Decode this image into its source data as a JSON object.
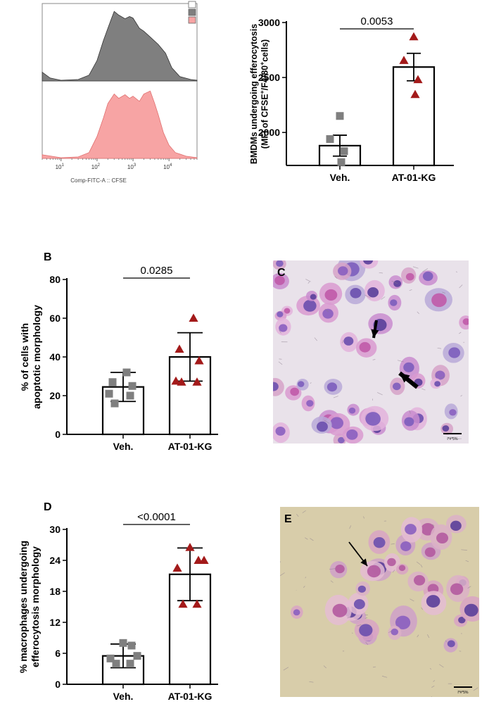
{
  "chart_data": [
    {
      "id": "A-left",
      "type": "area",
      "subtype": "flow-cytometry-histogram-overlay",
      "xlabel": "Comp-FITC-A :: CFSE",
      "x_scale": "log",
      "x_ticks": [
        {
          "base": "10",
          "exp": "1",
          "value": 10
        },
        {
          "base": "10",
          "exp": "2",
          "value": 100
        },
        {
          "base": "10",
          "exp": "3",
          "value": 1000
        },
        {
          "base": "10",
          "exp": "4",
          "value": 10000
        }
      ],
      "xlim": [
        3,
        60000
      ],
      "series": [
        {
          "color": "#7f7f7f",
          "stroke": "#333333",
          "points": [
            [
              3,
              0.12
            ],
            [
              5,
              0.04
            ],
            [
              10,
              0.01
            ],
            [
              30,
              0.02
            ],
            [
              60,
              0.08
            ],
            [
              100,
              0.28
            ],
            [
              150,
              0.55
            ],
            [
              200,
              0.72
            ],
            [
              250,
              0.85
            ],
            [
              300,
              0.95
            ],
            [
              400,
              0.9
            ],
            [
              600,
              0.85
            ],
            [
              800,
              0.88
            ],
            [
              1000,
              0.86
            ],
            [
              1500,
              0.72
            ],
            [
              2000,
              0.68
            ],
            [
              3000,
              0.6
            ],
            [
              5000,
              0.5
            ],
            [
              8000,
              0.38
            ],
            [
              12000,
              0.18
            ],
            [
              20000,
              0.06
            ],
            [
              40000,
              0.02
            ],
            [
              60000,
              0.01
            ]
          ]
        },
        {
          "color": "#f7a4a4",
          "stroke": "#e07070",
          "points": [
            [
              3,
              0.05
            ],
            [
              10,
              0.01
            ],
            [
              30,
              0.02
            ],
            [
              60,
              0.08
            ],
            [
              100,
              0.3
            ],
            [
              150,
              0.55
            ],
            [
              200,
              0.75
            ],
            [
              300,
              0.88
            ],
            [
              400,
              0.82
            ],
            [
              600,
              0.87
            ],
            [
              800,
              0.82
            ],
            [
              1000,
              0.85
            ],
            [
              1500,
              0.78
            ],
            [
              2000,
              0.88
            ],
            [
              3000,
              0.92
            ],
            [
              4000,
              0.75
            ],
            [
              5000,
              0.6
            ],
            [
              7000,
              0.35
            ],
            [
              10000,
              0.18
            ],
            [
              15000,
              0.08
            ],
            [
              30000,
              0.03
            ],
            [
              60000,
              0.01
            ]
          ]
        }
      ],
      "legend_colors": [
        "#ffffff",
        "#7f7f7f",
        "#f7a4a4"
      ]
    },
    {
      "id": "A-right",
      "type": "bar",
      "ylabel_line1": "BMDMs undergoing efferocytosis",
      "ylabel_line2_parts": [
        {
          "t": "(MFI of CFSE",
          "sup": false
        },
        {
          "t": "+",
          "sup": true
        },
        {
          "t": "/F4/80",
          "sup": false
        },
        {
          "t": "+",
          "sup": true
        },
        {
          "t": "cells)",
          "sup": false
        }
      ],
      "categories": [
        "Veh.",
        "AT-01-KG"
      ],
      "values": [
        1880,
        2595
      ],
      "errors": [
        95,
        125
      ],
      "points": [
        [
          2150,
          1940,
          1830,
          1730
        ],
        [
          2870,
          2655,
          2480,
          2345
        ]
      ],
      "markers": [
        "square",
        "triangle"
      ],
      "marker_colors": [
        "#7f7f7f",
        "#a31a1a"
      ],
      "ylim": [
        1700,
        3000
      ],
      "yticks": [
        2000,
        2500,
        3000
      ],
      "pvalue": "0.0053"
    },
    {
      "id": "B",
      "type": "bar",
      "panel_label": "B",
      "ylabel_line1": "% of cells with",
      "ylabel_line2": "apoptotic morphology",
      "categories": [
        "Veh.",
        "AT-01-KG"
      ],
      "values": [
        24.5,
        40
      ],
      "errors": [
        7.5,
        12.5
      ],
      "points": [
        [
          32,
          27,
          25,
          21,
          20,
          16
        ],
        [
          60,
          44,
          38,
          27.5,
          27,
          27
        ]
      ],
      "markers": [
        "square",
        "triangle"
      ],
      "marker_colors": [
        "#7f7f7f",
        "#a31a1a"
      ],
      "ylim": [
        0,
        80
      ],
      "yticks": [
        0,
        20,
        40,
        60,
        80
      ],
      "pvalue": "0.0285"
    },
    {
      "id": "D",
      "type": "bar",
      "panel_label": "D",
      "ylabel_line1": "% macrophages undergoing",
      "ylabel_line2": "efferocytosis morphology",
      "categories": [
        "Veh.",
        "AT-01-KG"
      ],
      "values": [
        5.5,
        21.3
      ],
      "errors": [
        2.3,
        5.1
      ],
      "points": [
        [
          8,
          7.5,
          5.5,
          5,
          4,
          4
        ],
        [
          26.5,
          24,
          24,
          22.5,
          15.5,
          15.5
        ]
      ],
      "markers": [
        "square",
        "triangle"
      ],
      "marker_colors": [
        "#7f7f7f",
        "#a31a1a"
      ],
      "ylim": [
        0,
        30
      ],
      "yticks": [
        0,
        6,
        12,
        18,
        24,
        30
      ],
      "pvalue": "<0.0001"
    }
  ],
  "images": {
    "C": {
      "panel_label": "C",
      "scale_text": "l*#*5%",
      "bg": "#e9e2ea"
    },
    "E": {
      "panel_label": "E",
      "scale_text": "l*#*5%",
      "bg": "#d8cdaa"
    }
  }
}
